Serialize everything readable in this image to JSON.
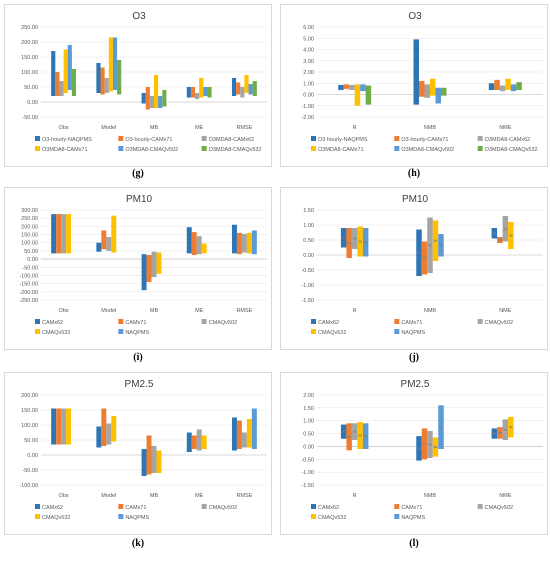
{
  "captions": [
    "(g)",
    "(h)",
    "(i)",
    "(j)",
    "(k)",
    "(l)"
  ],
  "chart_data": [
    {
      "type": "floating-bar",
      "title": "O3",
      "categories": [
        "Obs",
        "Model",
        "MB",
        "ME",
        "RMSE"
      ],
      "ylim": [
        -50,
        250
      ],
      "yticks": [
        -50,
        0,
        50,
        100,
        150,
        200,
        250
      ],
      "tick_decimals": 2,
      "legend": "bottom",
      "series": [
        {
          "name": "O3-hourly-NAQPMS",
          "color": "#2e75b6",
          "values": [
            [
              20,
              170
            ],
            [
              30,
              130
            ],
            [
              -5,
              30
            ],
            [
              15,
              50
            ],
            [
              20,
              80
            ]
          ]
        },
        {
          "name": "O3-hourly-CAMx71",
          "color": "#ed7d31",
          "values": [
            [
              20,
              100
            ],
            [
              25,
              115
            ],
            [
              -25,
              50
            ],
            [
              15,
              50
            ],
            [
              25,
              65
            ]
          ]
        },
        {
          "name": "O3MDA8-CAMx62",
          "color": "#a5a5a5",
          "values": [
            [
              20,
              70
            ],
            [
              30,
              80
            ],
            [
              -20,
              20
            ],
            [
              10,
              30
            ],
            [
              15,
              50
            ]
          ]
        },
        {
          "name": "O3MDA8-CAMx71",
          "color": "#ffc000",
          "values": [
            [
              30,
              175
            ],
            [
              35,
              215
            ],
            [
              -20,
              90
            ],
            [
              15,
              80
            ],
            [
              30,
              90
            ]
          ]
        },
        {
          "name": "O3MDA8-CMAQv502",
          "color": "#5b9bd5",
          "values": [
            [
              40,
              190
            ],
            [
              40,
              215
            ],
            [
              -20,
              20
            ],
            [
              20,
              50
            ],
            [
              25,
              60
            ]
          ]
        },
        {
          "name": "O3MDA8-CMAQv532",
          "color": "#70ad47",
          "values": [
            [
              20,
              110
            ],
            [
              25,
              140
            ],
            [
              -15,
              40
            ],
            [
              15,
              50
            ],
            [
              20,
              70
            ]
          ]
        }
      ]
    },
    {
      "type": "floating-bar",
      "title": "O3",
      "categories": [
        "R",
        "NMB",
        "NME"
      ],
      "ylim": [
        -2,
        6
      ],
      "yticks": [
        -2,
        -1,
        0,
        1,
        2,
        3,
        4,
        5,
        6
      ],
      "tick_decimals": 2,
      "legend": "bottom",
      "series": [
        {
          "name": "O3 hourly-NAQPMS",
          "color": "#2e75b6",
          "values": [
            [
              0.4,
              0.85
            ],
            [
              -0.9,
              4.9
            ],
            [
              0.4,
              1.0
            ]
          ]
        },
        {
          "name": "O3-hourly-CAMx71",
          "color": "#ed7d31",
          "values": [
            [
              0.5,
              0.9
            ],
            [
              -0.2,
              1.2
            ],
            [
              0.4,
              1.3
            ]
          ]
        },
        {
          "name": "O3MDA8-CAMx62",
          "color": "#a5a5a5",
          "values": [
            [
              0.4,
              0.85
            ],
            [
              -0.3,
              0.9
            ],
            [
              0.3,
              0.8
            ]
          ]
        },
        {
          "name": "O3MDA8-CAMx71",
          "color": "#ffc000",
          "values": [
            [
              -1.0,
              0.9
            ],
            [
              -0.1,
              1.4
            ],
            [
              0.4,
              1.4
            ]
          ]
        },
        {
          "name": "O3MDA8-CMAQv502",
          "color": "#5b9bd5",
          "values": [
            [
              0.3,
              0.9
            ],
            [
              -0.8,
              0.6
            ],
            [
              0.3,
              0.9
            ]
          ]
        },
        {
          "name": "O3MDA8-CMAQv532",
          "color": "#70ad47",
          "values": [
            [
              -0.9,
              0.8
            ],
            [
              -0.1,
              0.6
            ],
            [
              0.4,
              1.1
            ]
          ]
        }
      ]
    },
    {
      "type": "floating-bar",
      "title": "PM10",
      "categories": [
        "Obs",
        "Model",
        "MB",
        "ME",
        "RMSE"
      ],
      "ylim": [
        -250,
        300
      ],
      "yticks": [
        -250,
        -200,
        -150,
        -100,
        -50,
        0,
        50,
        100,
        150,
        200,
        250,
        300
      ],
      "tick_decimals": 2,
      "legend": "bottom",
      "series": [
        {
          "name": "CAMx62",
          "color": "#2e75b6",
          "values": [
            [
              35,
              275
            ],
            [
              45,
              100
            ],
            [
              -190,
              30
            ],
            [
              35,
              195
            ],
            [
              35,
              210
            ]
          ]
        },
        {
          "name": "CAMx71",
          "color": "#ed7d31",
          "values": [
            [
              35,
              275
            ],
            [
              60,
              175
            ],
            [
              -140,
              25
            ],
            [
              25,
              165
            ],
            [
              30,
              160
            ]
          ]
        },
        {
          "name": "CMAQv502",
          "color": "#a5a5a5",
          "values": [
            [
              35,
              275
            ],
            [
              50,
              135
            ],
            [
              -110,
              45
            ],
            [
              30,
              140
            ],
            [
              40,
              155
            ]
          ]
        },
        {
          "name": "CMAQv532",
          "color": "#ffc000",
          "values": [
            [
              35,
              275
            ],
            [
              40,
              265
            ],
            [
              -90,
              40
            ],
            [
              35,
              95
            ],
            [
              35,
              160
            ]
          ]
        },
        {
          "name": "NAQPMS",
          "color": "#5b9bd5",
          "values": [
            [
              null,
              null
            ],
            [
              null,
              null
            ],
            [
              null,
              null
            ],
            [
              null,
              null
            ],
            [
              30,
              175
            ]
          ]
        }
      ]
    },
    {
      "type": "floating-bar",
      "title": "PM10",
      "categories": [
        "R",
        "NMB",
        "NME"
      ],
      "ylim": [
        -1.5,
        1.5
      ],
      "yticks": [
        -1.5,
        -1,
        -0.5,
        0,
        0.5,
        1,
        1.5
      ],
      "tick_decimals": 2,
      "legend": "bottom",
      "markers": true,
      "series": [
        {
          "name": "CAMx62",
          "color": "#2e75b6",
          "values": [
            [
              0.25,
              0.9
            ],
            [
              -0.7,
              0.85
            ],
            [
              0.55,
              0.9
            ]
          ]
        },
        {
          "name": "CAMx71",
          "color": "#ed7d31",
          "values": [
            [
              -0.1,
              0.9
            ],
            [
              -0.65,
              0.45
            ],
            [
              0.4,
              0.6
            ]
          ]
        },
        {
          "name": "CMAQv502",
          "color": "#a5a5a5",
          "values": [
            [
              0.2,
              0.9
            ],
            [
              -0.6,
              1.25
            ],
            [
              0.45,
              1.3
            ]
          ]
        },
        {
          "name": "CMAQv532",
          "color": "#ffc000",
          "values": [
            [
              -0.05,
              0.95
            ],
            [
              -0.2,
              1.15
            ],
            [
              0.2,
              1.1
            ]
          ]
        },
        {
          "name": "NAQPMS",
          "color": "#5b9bd5",
          "values": [
            [
              -0.05,
              0.9
            ],
            [
              -0.05,
              0.7
            ],
            [
              null,
              null
            ]
          ]
        }
      ]
    },
    {
      "type": "floating-bar",
      "title": "PM2.5",
      "categories": [
        "Obs",
        "Model",
        "MB",
        "ME",
        "RMSE"
      ],
      "ylim": [
        -100,
        200
      ],
      "yticks": [
        -100,
        -50,
        0,
        50,
        100,
        150,
        200
      ],
      "tick_decimals": 2,
      "legend": "bottom",
      "series": [
        {
          "name": "CAMx62",
          "color": "#2e75b6",
          "values": [
            [
              35,
              155
            ],
            [
              25,
              95
            ],
            [
              -70,
              20
            ],
            [
              10,
              75
            ],
            [
              15,
              125
            ]
          ]
        },
        {
          "name": "CAMx71",
          "color": "#ed7d31",
          "values": [
            [
              35,
              155
            ],
            [
              30,
              155
            ],
            [
              -65,
              65
            ],
            [
              20,
              65
            ],
            [
              20,
              115
            ]
          ]
        },
        {
          "name": "CMAQv502",
          "color": "#a5a5a5",
          "values": [
            [
              35,
              155
            ],
            [
              35,
              105
            ],
            [
              -60,
              30
            ],
            [
              15,
              85
            ],
            [
              25,
              75
            ]
          ]
        },
        {
          "name": "CMAQv532",
          "color": "#ffc000",
          "values": [
            [
              35,
              155
            ],
            [
              45,
              130
            ],
            [
              -60,
              15
            ],
            [
              20,
              65
            ],
            [
              25,
              120
            ]
          ]
        },
        {
          "name": "NAQPMS",
          "color": "#5b9bd5",
          "values": [
            [
              null,
              null
            ],
            [
              null,
              null
            ],
            [
              null,
              null
            ],
            [
              null,
              null
            ],
            [
              20,
              155
            ]
          ]
        }
      ]
    },
    {
      "type": "floating-bar",
      "title": "PM2.5",
      "categories": [
        "R",
        "NMB",
        "NME"
      ],
      "ylim": [
        -1.5,
        2
      ],
      "yticks": [
        -1.5,
        -1,
        -0.5,
        0,
        0.5,
        1,
        1.5,
        2
      ],
      "tick_decimals": 2,
      "legend": "bottom",
      "markers": true,
      "series": [
        {
          "name": "CAMx62",
          "color": "#2e75b6",
          "values": [
            [
              0.3,
              0.85
            ],
            [
              -0.55,
              0.4
            ],
            [
              0.3,
              0.7
            ]
          ]
        },
        {
          "name": "CAMx71",
          "color": "#ed7d31",
          "values": [
            [
              -0.15,
              0.9
            ],
            [
              -0.5,
              0.7
            ],
            [
              0.3,
              0.75
            ]
          ]
        },
        {
          "name": "CMAQv502",
          "color": "#a5a5a5",
          "values": [
            [
              0.25,
              0.9
            ],
            [
              -0.45,
              0.6
            ],
            [
              0.25,
              1.05
            ]
          ]
        },
        {
          "name": "CMAQv532",
          "color": "#ffc000",
          "values": [
            [
              -0.1,
              0.95
            ],
            [
              -0.4,
              0.35
            ],
            [
              0.35,
              1.15
            ]
          ]
        },
        {
          "name": "NAQPMS",
          "color": "#5b9bd5",
          "values": [
            [
              -0.1,
              0.9
            ],
            [
              -0.1,
              1.6
            ],
            [
              null,
              null
            ]
          ]
        }
      ]
    }
  ]
}
